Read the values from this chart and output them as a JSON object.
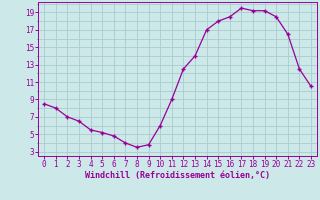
{
  "hours": [
    0,
    1,
    2,
    3,
    4,
    5,
    6,
    7,
    8,
    9,
    10,
    11,
    12,
    13,
    14,
    15,
    16,
    17,
    18,
    19,
    20,
    21,
    22,
    23
  ],
  "values": [
    8.5,
    8.0,
    7.0,
    6.5,
    5.5,
    5.2,
    4.8,
    4.0,
    3.5,
    3.8,
    6.0,
    9.0,
    12.5,
    14.0,
    17.0,
    18.0,
    18.5,
    19.5,
    19.2,
    19.2,
    18.5,
    16.5,
    12.5,
    10.5
  ],
  "line_color": "#990099",
  "marker": "+",
  "bg_color": "#cce8e8",
  "grid_color": "#aacccc",
  "tick_color": "#990099",
  "label_color": "#990099",
  "xlabel": "Windchill (Refroidissement éolien,°C)",
  "yticks": [
    3,
    5,
    7,
    9,
    11,
    13,
    15,
    17,
    19
  ],
  "xticks": [
    0,
    1,
    2,
    3,
    4,
    5,
    6,
    7,
    8,
    9,
    10,
    11,
    12,
    13,
    14,
    15,
    16,
    17,
    18,
    19,
    20,
    21,
    22,
    23
  ],
  "ylim": [
    2.5,
    20.2
  ],
  "xlim": [
    -0.5,
    23.5
  ]
}
